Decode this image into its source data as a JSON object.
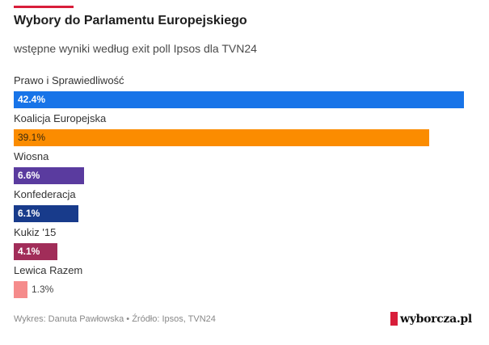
{
  "header": {
    "title": "Wybory do Parlamentu Europejskiego",
    "subtitle": "wstępne wyniki według exit poll Ipsos dla TVN24"
  },
  "chart_data": {
    "type": "bar",
    "orientation": "horizontal",
    "title": "Wybory do Parlamentu Europejskiego",
    "subtitle": "wstępne wyniki według exit poll Ipsos dla TVN24",
    "xlabel": "",
    "ylabel": "",
    "unit": "%",
    "xlim": [
      0,
      42.4
    ],
    "categories": [
      "Prawo i Sprawiedliwość",
      "Koalicja Europejska",
      "Wiosna",
      "Konfederacja",
      "Kukiz '15",
      "Lewica Razem"
    ],
    "values": [
      42.4,
      39.1,
      6.6,
      6.1,
      4.1,
      1.3
    ],
    "value_labels": [
      "42.4%",
      "39.1%",
      "6.6%",
      "6.1%",
      "4.1%",
      "1.3%"
    ],
    "colors": [
      "#1874e8",
      "#fb8c00",
      "#5a3b9f",
      "#183b8b",
      "#a12d59",
      "#f58b8b"
    ]
  },
  "footer": {
    "credit": "Wykres: Danuta Pawłowska • Źródło: Ipsos, TVN24",
    "logo_text": "wyborcza.pl",
    "logo_color": "#d81e3a"
  }
}
